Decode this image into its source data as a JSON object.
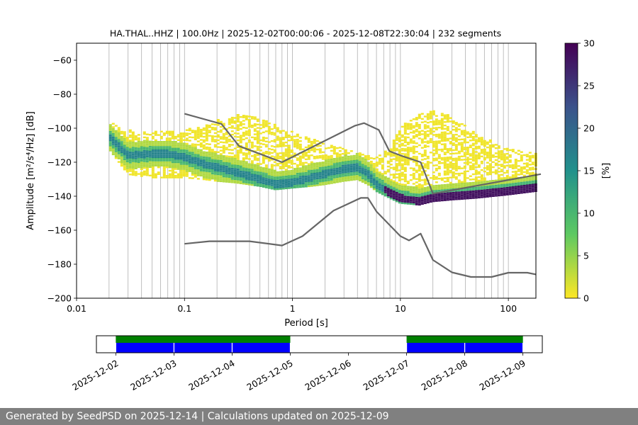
{
  "chart_data": [
    {
      "type": "heatmap",
      "title": "HA.THAL..HHZ | 100.0Hz | 2025-12-02T00:00:06 - 2025-12-08T22:30:04 | 232 segments",
      "xlabel": "Period [s]",
      "ylabel": "Amplitude [m²/s⁴/Hz] [dB]",
      "x_scale": "log",
      "xlim": [
        0.01,
        180
      ],
      "ylim": [
        -200,
        -50
      ],
      "x_ticks": [
        "0.01",
        "0.1",
        "1",
        "10",
        "100"
      ],
      "y_ticks": [
        "−60",
        "−80",
        "−100",
        "−120",
        "−140",
        "−160",
        "−180",
        "−200"
      ],
      "grid": "x-only",
      "colorbar": {
        "label": "[%]",
        "range": [
          0,
          30
        ],
        "ticks": [
          "0",
          "5",
          "10",
          "15",
          "20",
          "25",
          "30"
        ],
        "colormap": [
          "#fde725",
          "#5ec962",
          "#21918c",
          "#3b528b",
          "#440154"
        ]
      },
      "psd_mode": {
        "period": [
          0.02,
          0.03,
          0.05,
          0.07,
          0.1,
          0.15,
          0.2,
          0.3,
          0.5,
          0.7,
          1,
          1.5,
          2,
          3,
          4,
          5,
          6,
          8,
          10,
          15,
          20,
          30,
          50,
          100,
          180
        ],
        "db": [
          -105,
          -116,
          -115,
          -115,
          -117,
          -121,
          -123,
          -126,
          -130,
          -133,
          -132,
          -129,
          -127,
          -124,
          -123,
          -127,
          -133,
          -138,
          -141,
          -143,
          -141,
          -140,
          -139,
          -137,
          -135
        ]
      },
      "spread_upper_db": [
        -96,
        -101,
        -102,
        -102,
        -101,
        -98,
        -95,
        -92,
        -94,
        -98,
        -102,
        -106,
        -109,
        -112,
        -114,
        -116,
        -117,
        -112,
        -99,
        -92,
        -89,
        -93,
        -103,
        -112,
        -115
      ],
      "spread_lower_db": [
        -112,
        -127,
        -129,
        -129,
        -129,
        -130,
        -131,
        -132,
        -134,
        -136,
        -135,
        -134,
        -133,
        -131,
        -130,
        -133,
        -137,
        -141,
        -144,
        -145,
        -143,
        -142,
        -141,
        -139,
        -137
      ],
      "series": [
        {
          "name": "",
          "color": "#666666",
          "x": [
            0.1,
            0.22,
            0.32,
            0.8,
            3.8,
            4.6,
            6.3,
            7.9,
            10,
            15.4,
            20,
            200
          ],
          "y": [
            -91.5,
            -97.5,
            -110.5,
            -120,
            -98.5,
            -97,
            -101,
            -113.5,
            -116,
            -120,
            -138.5,
            -127
          ]
        },
        {
          "name": "",
          "color": "#666666",
          "x": [
            0.1,
            0.17,
            0.4,
            0.8,
            1.24,
            2.4,
            4.3,
            5,
            6,
            10,
            12,
            15.4,
            20,
            30,
            45,
            70,
            100,
            150,
            180
          ],
          "y": [
            -168,
            -166.5,
            -166.5,
            -169,
            -163.5,
            -148.5,
            -141,
            -141,
            -149,
            -163.5,
            -166,
            -162,
            -177.5,
            -184.8,
            -187.5,
            -187.5,
            -185,
            -185,
            -186
          ]
        }
      ]
    },
    {
      "type": "timeline",
      "x_ticks": [
        "2025-12-02",
        "2025-12-03",
        "2025-12-04",
        "2025-12-05",
        "2025-12-06",
        "2025-12-07",
        "2025-12-08",
        "2025-12-09"
      ],
      "xlim": [
        "2025-12-01 16:00",
        "2025-12-09 08:00"
      ],
      "green_bands": [
        {
          "start": "2025-12-02",
          "end": "2025-12-05"
        },
        {
          "start": "2025-12-07",
          "end": "2025-12-09"
        }
      ],
      "blue_segments": [
        {
          "start": "2025-12-02",
          "end": "2025-12-03"
        },
        {
          "start": "2025-12-03",
          "end": "2025-12-04"
        },
        {
          "start": "2025-12-04",
          "end": "2025-12-05"
        },
        {
          "start": "2025-12-07",
          "end": "2025-12-08"
        },
        {
          "start": "2025-12-08",
          "end": "2025-12-09"
        }
      ],
      "colors": {
        "green": "#008000",
        "blue": "#0000ff"
      }
    }
  ],
  "footer": "Generated by SeedPSD on 2025-12-14 | Calculations updated on 2025-12-09"
}
